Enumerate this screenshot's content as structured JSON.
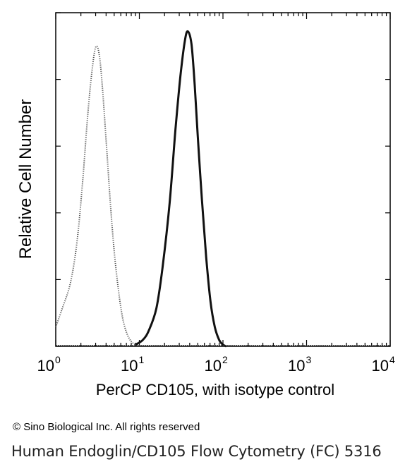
{
  "chart_data": {
    "type": "line",
    "title": "",
    "xlabel": "PerCP CD105, with isotype control",
    "ylabel": "Relative Cell Number",
    "x_scale": "log",
    "xlim": [
      1,
      10000
    ],
    "x_ticks": [
      {
        "base": "10",
        "exp": "0"
      },
      {
        "base": "10",
        "exp": "1"
      },
      {
        "base": "10",
        "exp": "2"
      },
      {
        "base": "10",
        "exp": "3"
      },
      {
        "base": "10",
        "exp": "4"
      }
    ],
    "ylim": [
      0,
      100
    ],
    "grid": false,
    "legend": "none",
    "series": [
      {
        "style": "dotted",
        "color": "#555555",
        "x": [
          1.0,
          1.2,
          1.5,
          1.8,
          2.1,
          2.4,
          2.7,
          3.0,
          3.3,
          3.6,
          4.0,
          4.5,
          5.0,
          5.6,
          6.3,
          7.1,
          8.0,
          9.0
        ],
        "y": [
          6,
          12,
          20,
          33,
          52,
          72,
          86,
          94,
          92,
          82,
          65,
          45,
          30,
          18,
          9,
          4,
          1.5,
          0.5
        ]
      },
      {
        "style": "solid",
        "color": "#111111",
        "x": [
          9.0,
          11,
          13,
          16,
          19,
          23,
          27,
          31,
          35,
          38,
          42,
          46,
          50,
          56,
          63,
          71,
          80,
          90,
          100,
          110
        ],
        "y": [
          0.5,
          2,
          5,
          12,
          25,
          45,
          68,
          85,
          96,
          99,
          95,
          82,
          66,
          46,
          28,
          14,
          6,
          2,
          0.5,
          0
        ]
      }
    ]
  },
  "copyright": "© Sino Biological Inc. All rights reserved",
  "caption": "Human Endoglin/CD105  Flow Cytometry (FC) 5316"
}
